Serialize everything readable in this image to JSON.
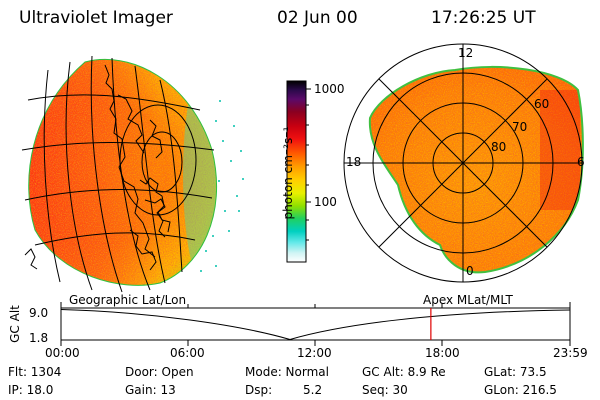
{
  "header": {
    "title": "Ultraviolet Imager",
    "date": "02 Jun 00",
    "time": "17:26:25 UT"
  },
  "left_panel": {
    "label": "Geographic Lat/Lon"
  },
  "right_panel": {
    "label": "Apex MLat/MLT",
    "mlt_labels": {
      "top": "12",
      "left": "18",
      "right": "6",
      "bottom": "0"
    },
    "lat_labels": [
      "60",
      "70",
      "80"
    ]
  },
  "colorbar": {
    "unit": "photon cm⁻²s⁻¹",
    "ticks": [
      "1000",
      "100"
    ],
    "colors": [
      "#000000",
      "#2a0a4a",
      "#5a0a6a",
      "#8a0020",
      "#c80010",
      "#f01010",
      "#ff5a00",
      "#ff9a00",
      "#ffd000",
      "#e8f000",
      "#90e000",
      "#20d060",
      "#00d0c0",
      "#60e8e8",
      "#b0f0f0",
      "#e8f8f8",
      "#ffffff"
    ]
  },
  "altitude_plot": {
    "axis_label": "GC Alt",
    "y_max": "9.0",
    "y_min": "1.8",
    "x_ticks": [
      "00:00",
      "06:00",
      "12:00",
      "18:00",
      "23:59"
    ],
    "current_time_hours": 17.44,
    "marker_color": "#e00000"
  },
  "status": {
    "flt": "Flt: 1304",
    "ip": "IP: 18.0",
    "door": "Door: Open",
    "gain": "Gain: 13",
    "mode": "Mode: Normal",
    "dsp_label": "Dsp:",
    "dsp_value": "5.2",
    "gc_alt": "GC Alt: 8.9 Re",
    "seq": "Seq: 30",
    "glat": "GLat: 73.5",
    "glon": "GLon: 216.5"
  }
}
